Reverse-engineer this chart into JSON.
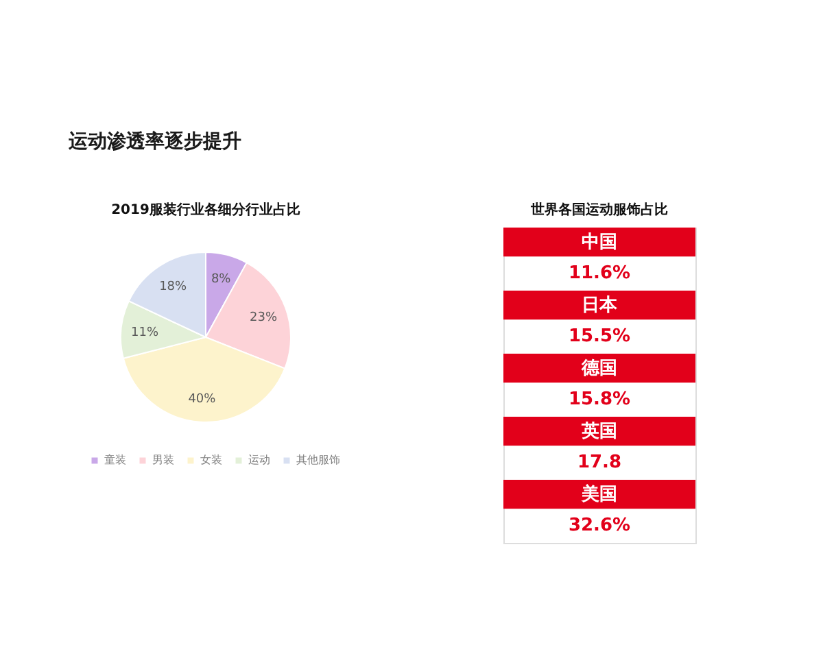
{
  "chart_data": [
    {
      "type": "pie",
      "title": "2019服装行业各细分行业占比",
      "annotations": [
        "运动渗透率逐步提升"
      ],
      "categories": [
        "童装",
        "男装",
        "女装",
        "运动",
        "其他服饰"
      ],
      "values": [
        8,
        23,
        40,
        11,
        18
      ],
      "colors": [
        "#c9a8e8",
        "#fdd3d8",
        "#fdf3cc",
        "#e3f0d8",
        "#d8e0f2"
      ],
      "value_labels": [
        "8%",
        "23%",
        "40%",
        "11%",
        "18%"
      ],
      "legend": "bottom"
    },
    {
      "type": "other",
      "title": "世界各国运动服饰占比",
      "categories": [
        "中国",
        "日本",
        "德国",
        "英国",
        "美国"
      ],
      "value_labels": [
        "11.6%",
        "15.5%",
        "15.8%",
        "17.8",
        "32.6%"
      ],
      "color": "#e2001a"
    }
  ]
}
